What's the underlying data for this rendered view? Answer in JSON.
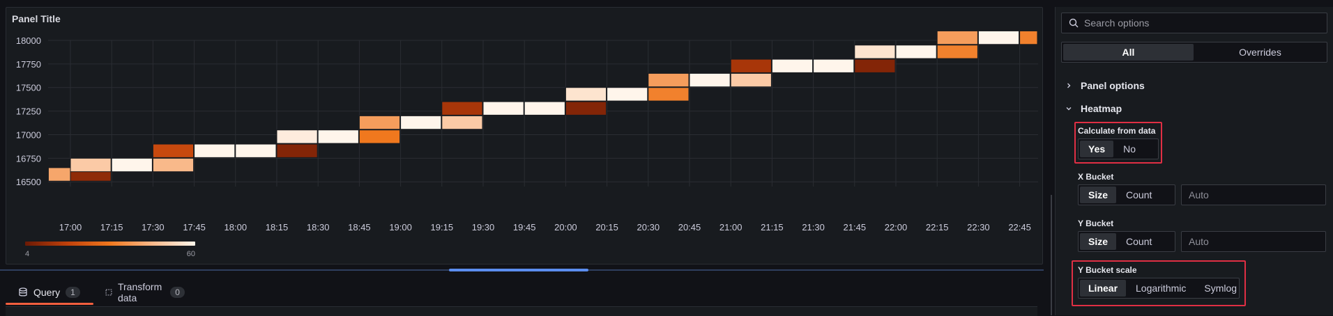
{
  "panel": {
    "title": "Panel Title"
  },
  "chart_data": {
    "type": "heatmap",
    "y_ticks": [
      "16500",
      "16750",
      "17000",
      "17250",
      "17500",
      "17750",
      "18000"
    ],
    "x_ticks": [
      "17:00",
      "17:15",
      "17:30",
      "17:45",
      "18:00",
      "18:15",
      "18:30",
      "18:45",
      "19:00",
      "19:15",
      "19:30",
      "19:45",
      "20:00",
      "20:15",
      "20:30",
      "20:45",
      "21:00",
      "21:15",
      "21:30",
      "21:45",
      "22:00",
      "22:15",
      "22:30",
      "22:45"
    ],
    "legend": {
      "min": "4",
      "max": "60",
      "colors": [
        "#6b1a05",
        "#c0410b",
        "#f0781e",
        "#f9b98a",
        "#fff5eb"
      ]
    },
    "cells": [
      {
        "x": "16:52",
        "y": 16500,
        "value": 42
      },
      {
        "x": "17:00",
        "y": 16500,
        "value": 10
      },
      {
        "x": "17:00",
        "y": 16600,
        "value": 50
      },
      {
        "x": "17:15",
        "y": 16600,
        "value": 60
      },
      {
        "x": "17:30",
        "y": 16600,
        "value": 46
      },
      {
        "x": "17:30",
        "y": 16750,
        "value": 20
      },
      {
        "x": "17:45",
        "y": 16750,
        "value": 60
      },
      {
        "x": "18:00",
        "y": 16750,
        "value": 60
      },
      {
        "x": "18:15",
        "y": 16750,
        "value": 8
      },
      {
        "x": "18:15",
        "y": 16900,
        "value": 58
      },
      {
        "x": "18:30",
        "y": 16900,
        "value": 60
      },
      {
        "x": "18:45",
        "y": 16900,
        "value": 32
      },
      {
        "x": "18:45",
        "y": 17050,
        "value": 40
      },
      {
        "x": "19:00",
        "y": 17050,
        "value": 60
      },
      {
        "x": "19:15",
        "y": 17050,
        "value": 50
      },
      {
        "x": "19:15",
        "y": 17200,
        "value": 14
      },
      {
        "x": "19:30",
        "y": 17200,
        "value": 60
      },
      {
        "x": "19:45",
        "y": 17200,
        "value": 60
      },
      {
        "x": "20:00",
        "y": 17200,
        "value": 8
      },
      {
        "x": "20:00",
        "y": 17350,
        "value": 56
      },
      {
        "x": "20:15",
        "y": 17350,
        "value": 60
      },
      {
        "x": "20:30",
        "y": 17350,
        "value": 34
      },
      {
        "x": "20:30",
        "y": 17500,
        "value": 40
      },
      {
        "x": "20:45",
        "y": 17500,
        "value": 60
      },
      {
        "x": "21:00",
        "y": 17500,
        "value": 50
      },
      {
        "x": "21:00",
        "y": 17650,
        "value": 14
      },
      {
        "x": "21:15",
        "y": 17650,
        "value": 60
      },
      {
        "x": "21:30",
        "y": 17650,
        "value": 60
      },
      {
        "x": "21:45",
        "y": 17650,
        "value": 8
      },
      {
        "x": "21:45",
        "y": 17800,
        "value": 56
      },
      {
        "x": "22:00",
        "y": 17800,
        "value": 60
      },
      {
        "x": "22:15",
        "y": 17800,
        "value": 34
      },
      {
        "x": "22:15",
        "y": 17950,
        "value": 40
      },
      {
        "x": "22:30",
        "y": 17950,
        "value": 60
      },
      {
        "x": "22:45",
        "y": 17950,
        "value": 34
      }
    ]
  },
  "tabs": [
    {
      "label": "Query",
      "count": "1",
      "icon": "database-icon"
    },
    {
      "label": "Transform data",
      "count": "0",
      "icon": "transform-icon"
    }
  ],
  "options": {
    "search_placeholder": "Search options",
    "scope": {
      "all": "All",
      "overrides": "Overrides"
    },
    "sections": {
      "panel_options": "Panel options",
      "heatmap": "Heatmap"
    },
    "calculate": {
      "label": "Calculate from data",
      "yes": "Yes",
      "no": "No"
    },
    "x_bucket": {
      "label": "X Bucket",
      "size": "Size",
      "count": "Count",
      "placeholder": "Auto"
    },
    "y_bucket": {
      "label": "Y Bucket",
      "size": "Size",
      "count": "Count",
      "placeholder": "Auto"
    },
    "y_scale": {
      "label": "Y Bucket scale",
      "linear": "Linear",
      "log": "Logarithmic",
      "symlog": "Symlog"
    },
    "colors": {
      "highlight": "#e02f44",
      "accent": "#f55f3e",
      "handle": "#5b8def"
    }
  }
}
